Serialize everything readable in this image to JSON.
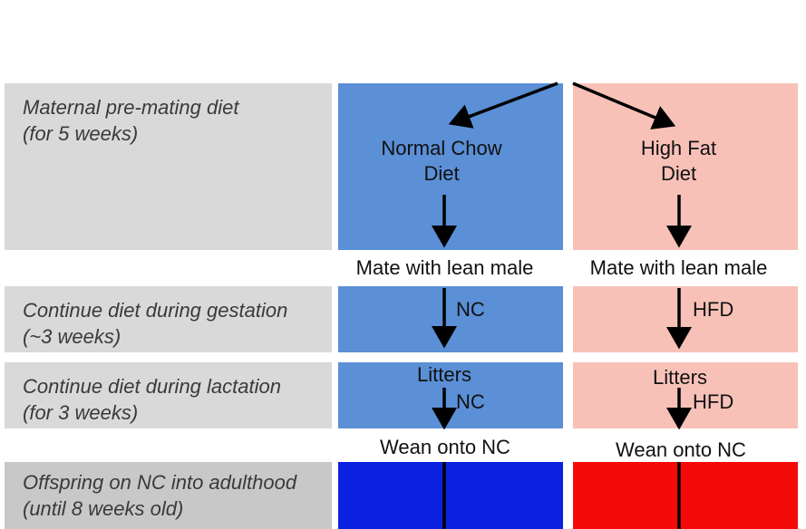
{
  "colors": {
    "label_grey": "#d9d9d9",
    "nc_blue": "#5b8fd6",
    "hfd_pink": "#f8c1b8",
    "nc_dark_blue": "#0a22e0",
    "hfd_red": "#f50a0a"
  },
  "rows": {
    "premating": "Maternal pre-mating diet\n(for 5 weeks)",
    "gestation": "Continue diet during gestation\n(~3 weeks)",
    "lactation": "Continue diet during lactation\n(for 3 weeks)",
    "offspring": "Offspring on NC into adulthood\n(until 8 weeks old)"
  },
  "nc": {
    "diet": "Normal Chow\nDiet",
    "mate": "Mate with lean male",
    "gestation_label": "NC",
    "litters": "Litters",
    "lactation_label": "NC",
    "wean": "Wean onto NC"
  },
  "hfd": {
    "diet": "High Fat\nDiet",
    "mate": "Mate with lean male",
    "gestation_label": "HFD",
    "litters": "Litters",
    "lactation_label": "HFD",
    "wean": "Wean onto NC"
  }
}
